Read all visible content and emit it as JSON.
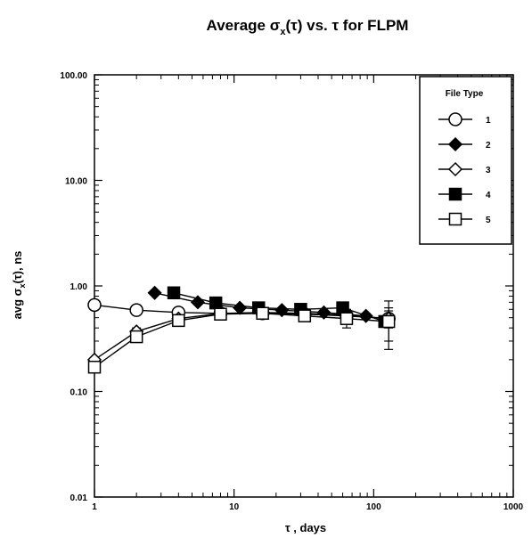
{
  "chart_data": {
    "type": "scatter",
    "title_prefix": "Average σ",
    "title_sub": "x",
    "title_suffix": "(τ) vs. τ for FLPM",
    "xlabel": "τ , days",
    "ylabel_prefix": "avg σ",
    "ylabel_sub": "x",
    "ylabel_suffix": "(τ), ns",
    "x_scale": "log",
    "y_scale": "log",
    "xlim": [
      1,
      1000
    ],
    "ylim": [
      0.01,
      100
    ],
    "x_ticks": [
      1,
      10,
      100,
      1000
    ],
    "x_tick_labels": [
      "1",
      "10",
      "100",
      "1000"
    ],
    "y_ticks": [
      0.01,
      0.1,
      1,
      10,
      100
    ],
    "y_tick_labels": [
      "0.01",
      "0.10",
      "1.00",
      "10.00",
      "100.00"
    ],
    "grid": false,
    "legend": {
      "title": "File Type",
      "placement": "top-right"
    },
    "series": [
      {
        "name": "1",
        "marker": "open-circle",
        "x": [
          1,
          2,
          4,
          8,
          16,
          32,
          64,
          128
        ],
        "y": [
          0.66,
          0.59,
          0.56,
          0.55,
          0.55,
          0.54,
          0.52,
          0.49
        ],
        "err_lo": [
          0.62,
          0.55,
          0.52,
          0.51,
          0.51,
          0.49,
          0.45,
          0.25
        ],
        "err_hi": [
          0.71,
          0.64,
          0.61,
          0.6,
          0.6,
          0.6,
          0.6,
          0.72
        ]
      },
      {
        "name": "2",
        "marker": "filled-diamond",
        "x": [
          2.7,
          5.5,
          11,
          22,
          44,
          88
        ],
        "y": [
          0.86,
          0.7,
          0.62,
          0.59,
          0.56,
          0.52
        ],
        "err_lo": [
          0.83,
          0.67,
          0.59,
          0.56,
          0.53,
          0.49
        ],
        "err_hi": [
          0.89,
          0.73,
          0.65,
          0.62,
          0.59,
          0.55
        ]
      },
      {
        "name": "3",
        "marker": "open-diamond",
        "x": [
          1,
          2,
          4,
          8,
          16,
          32,
          64,
          128
        ],
        "y": [
          0.2,
          0.37,
          0.49,
          0.55,
          0.56,
          0.55,
          0.53,
          0.49
        ],
        "err_lo": [
          0.19,
          0.34,
          0.46,
          0.52,
          0.53,
          0.5,
          0.47,
          0.4
        ],
        "err_hi": [
          0.21,
          0.4,
          0.52,
          0.58,
          0.59,
          0.6,
          0.59,
          0.58
        ]
      },
      {
        "name": "4",
        "marker": "filled-square",
        "x": [
          3.7,
          7.4,
          15,
          30,
          60,
          120
        ],
        "y": [
          0.86,
          0.69,
          0.62,
          0.6,
          0.62,
          0.46
        ],
        "err_lo": [
          0.82,
          0.66,
          0.59,
          0.57,
          0.58,
          0.42
        ],
        "err_hi": [
          0.9,
          0.72,
          0.65,
          0.63,
          0.66,
          0.5
        ]
      },
      {
        "name": "5",
        "marker": "open-square",
        "x": [
          1,
          2,
          4,
          8,
          16,
          32,
          64,
          128
        ],
        "y": [
          0.17,
          0.33,
          0.47,
          0.54,
          0.55,
          0.52,
          0.49,
          0.46
        ],
        "err_lo": [
          0.16,
          0.3,
          0.43,
          0.5,
          0.51,
          0.46,
          0.4,
          0.3
        ],
        "err_hi": [
          0.18,
          0.36,
          0.51,
          0.58,
          0.59,
          0.58,
          0.58,
          0.62
        ]
      }
    ]
  }
}
